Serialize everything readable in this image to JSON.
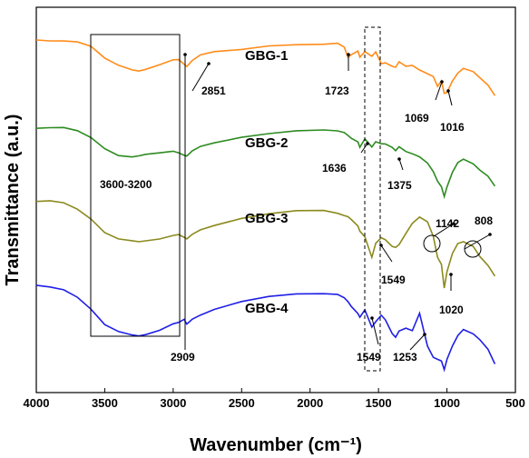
{
  "chart_data": {
    "type": "line",
    "xlabel": "Wavenumber (cm⁻¹)",
    "ylabel": "Transmittance (a.u.)",
    "xlim": [
      4000,
      500
    ],
    "x_ticks": [
      4000,
      3500,
      3000,
      2500,
      2000,
      1500,
      1000,
      500
    ],
    "y_ticks_shown": false,
    "grid": false,
    "x": [
      4000,
      3900,
      3800,
      3700,
      3600,
      3500,
      3400,
      3300,
      3250,
      3200,
      3100,
      3000,
      2960,
      2920,
      2900,
      2860,
      2800,
      2700,
      2500,
      2300,
      2100,
      1900,
      1800,
      1750,
      1723,
      1700,
      1650,
      1636,
      1600,
      1549,
      1520,
      1480,
      1450,
      1400,
      1375,
      1350,
      1300,
      1253,
      1200,
      1142,
      1100,
      1069,
      1040,
      1020,
      1000,
      960,
      920,
      880,
      808,
      760,
      700,
      650
    ],
    "series": [
      {
        "name": "GBG-1",
        "color": "#ff8c1a",
        "values": [
          44,
          44,
          44,
          46,
          52,
          65,
          72,
          76,
          77,
          76,
          72,
          67,
          66,
          70,
          72,
          66,
          61,
          58,
          55,
          50,
          48,
          48,
          48,
          53,
          64,
          60,
          55,
          62,
          57,
          63,
          58,
          70,
          68,
          72,
          74,
          69,
          74,
          72,
          76,
          80,
          84,
          96,
          90,
          103,
          101,
          88,
          80,
          76,
          80,
          86,
          93,
          104
        ]
      },
      {
        "name": "GBG-2",
        "color": "#2e8b22",
        "values": [
          140,
          140,
          141,
          145,
          152,
          163,
          170,
          172,
          172,
          171,
          169,
          166,
          167,
          170,
          172,
          167,
          162,
          157,
          150,
          146,
          144,
          144,
          145,
          146,
          148,
          151,
          156,
          163,
          154,
          162,
          155,
          157,
          158,
          163,
          167,
          162,
          166,
          168,
          172,
          180,
          190,
          200,
          205,
          215,
          205,
          190,
          180,
          176,
          180,
          186,
          193,
          205
        ]
      },
      {
        "name": "GBG-3",
        "color": "#8c8a1e",
        "values": [
          222,
          222,
          224,
          230,
          240,
          255,
          263,
          266,
          267,
          265,
          262,
          258,
          258,
          262,
          264,
          258,
          252,
          247,
          240,
          236,
          233,
          232,
          234,
          236,
          238,
          242,
          250,
          255,
          260,
          282,
          267,
          262,
          265,
          272,
          272,
          268,
          256,
          246,
          240,
          245,
          260,
          282,
          290,
          317,
          300,
          280,
          268,
          265,
          270,
          282,
          293,
          305
        ]
      },
      {
        "name": "GBG-4",
        "color": "#1f1fe6",
        "values": [
          315,
          316,
          318,
          326,
          340,
          358,
          366,
          369,
          369,
          367,
          363,
          357,
          356,
          352,
          356,
          350,
          346,
          341,
          333,
          327,
          323,
          322,
          323,
          328,
          333,
          338,
          345,
          348,
          340,
          360,
          355,
          348,
          352,
          366,
          370,
          364,
          362,
          365,
          345,
          380,
          392,
          395,
          398,
          408,
          396,
          380,
          368,
          362,
          368,
          375,
          385,
          400
        ]
      }
    ],
    "annotations": [
      {
        "text": "2851",
        "x": 2851,
        "series": "GBG-1"
      },
      {
        "text": "1723",
        "x": 1723,
        "series": "GBG-1"
      },
      {
        "text": "1069",
        "x": 1069,
        "series": "GBG-1"
      },
      {
        "text": "1016",
        "x": 1016,
        "series": "GBG-1"
      },
      {
        "text": "1636",
        "x": 1636,
        "series": "GBG-2"
      },
      {
        "text": "1375",
        "x": 1375,
        "series": "GBG-2"
      },
      {
        "text": "1142",
        "x": 1142,
        "series": "GBG-3"
      },
      {
        "text": "808",
        "x": 808,
        "series": "GBG-3"
      },
      {
        "text": "1549",
        "x": 1549,
        "series": "GBG-3"
      },
      {
        "text": "1020",
        "x": 1020,
        "series": "GBG-3"
      },
      {
        "text": "2909",
        "x": 2909,
        "series": "GBG-4"
      },
      {
        "text": "1549",
        "x": 1549,
        "series": "GBG-4"
      },
      {
        "text": "1253",
        "x": 1253,
        "series": "GBG-4"
      }
    ],
    "region_label": "3600-3200"
  }
}
